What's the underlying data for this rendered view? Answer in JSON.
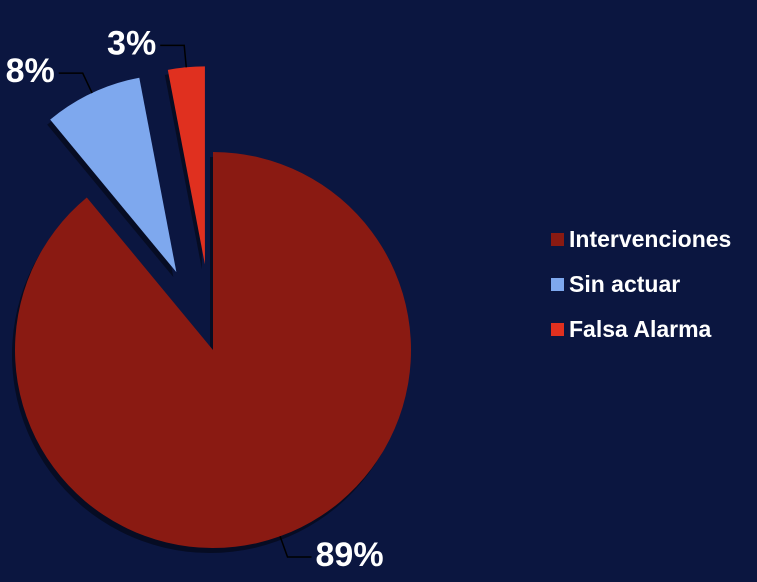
{
  "chart_data": {
    "type": "pie",
    "categories": [
      "Intervenciones",
      "Sin actuar",
      "Falsa Alarma"
    ],
    "values": [
      89,
      8,
      3
    ],
    "value_labels": [
      "89%",
      "8%",
      "3%"
    ],
    "colors": [
      "#8a1a12",
      "#7ea8ee",
      "#e0301f"
    ],
    "exploded": [
      false,
      true,
      true
    ],
    "legend": "right"
  }
}
